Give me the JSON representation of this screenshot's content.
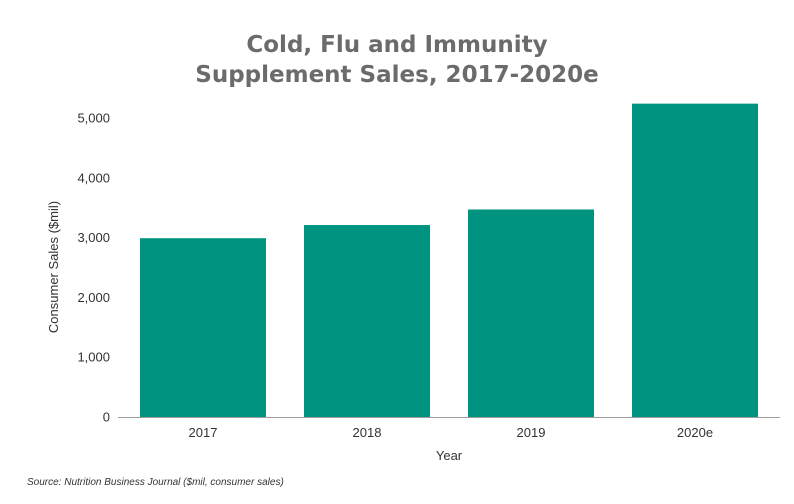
{
  "colors": {
    "bar": "#009480",
    "title": "#6b6b6b",
    "axis": "#9e9e9e",
    "text": "#333333"
  },
  "source": "Source: Nutrition Business Journal ($mil, consumer sales)",
  "chart_data": {
    "type": "bar",
    "title_lines": [
      "Cold, Flu and Immunity",
      "Supplement Sales, 2017-2020e"
    ],
    "xlabel": "Year",
    "ylabel": "Consumer Sales ($mil)",
    "categories": [
      "2017",
      "2018",
      "2019",
      "2020e"
    ],
    "values": [
      2990,
      3210,
      3470,
      5240
    ],
    "ylim": [
      0,
      5000
    ],
    "yticks": [
      0,
      1000,
      2000,
      3000,
      4000,
      5000
    ],
    "ytick_labels": [
      "0",
      "1,000",
      "2,000",
      "3,000",
      "4,000",
      "5,000"
    ],
    "grid": false,
    "legend": "none"
  }
}
